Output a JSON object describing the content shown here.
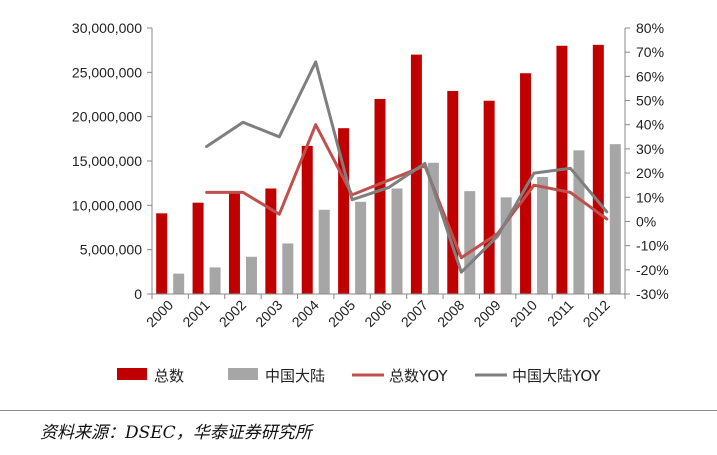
{
  "chart_data": {
    "type": "bar",
    "categories": [
      "2000",
      "2001",
      "2002",
      "2003",
      "2004",
      "2005",
      "2006",
      "2007",
      "2008",
      "2009",
      "2010",
      "2011",
      "2012"
    ],
    "series": [
      {
        "name": "总数",
        "type": "bar",
        "axis": "left",
        "color": "#C00000",
        "values": [
          9100000,
          10300000,
          11500000,
          11900000,
          16700000,
          18700000,
          22000000,
          27000000,
          22900000,
          21800000,
          24900000,
          28000000,
          28100000
        ]
      },
      {
        "name": "中国大陆",
        "type": "bar",
        "axis": "left",
        "color": "#A6A6A6",
        "values": [
          2300000,
          3000000,
          4200000,
          5700000,
          9500000,
          10400000,
          11900000,
          14800000,
          11600000,
          10900000,
          13200000,
          16200000,
          16900000
        ]
      },
      {
        "name": "总数YOY",
        "type": "line",
        "axis": "right",
        "color": "#C0504D",
        "values": [
          null,
          12,
          12,
          3,
          40,
          11,
          17,
          23,
          -15,
          -5,
          15,
          12,
          1
        ]
      },
      {
        "name": "中国大陆YOY",
        "type": "line",
        "axis": "right",
        "color": "#7F7F7F",
        "values": [
          null,
          31,
          41,
          35,
          66,
          9,
          14,
          24,
          -21,
          -6,
          20,
          22,
          4
        ]
      }
    ],
    "y_left": {
      "ylim": [
        0,
        30000000
      ],
      "ticks": [
        0,
        5000000,
        10000000,
        15000000,
        20000000,
        25000000,
        30000000
      ],
      "tick_labels": [
        "0",
        "5,000,000",
        "10,000,000",
        "15,000,000",
        "20,000,000",
        "25,000,000",
        "30,000,000"
      ]
    },
    "y_right": {
      "ylim": [
        -30,
        80
      ],
      "ticks": [
        -30,
        -20,
        -10,
        0,
        10,
        20,
        30,
        40,
        50,
        60,
        70,
        80
      ],
      "tick_labels": [
        "-30%",
        "-20%",
        "-10%",
        "0%",
        "10%",
        "20%",
        "30%",
        "40%",
        "50%",
        "60%",
        "70%",
        "80%"
      ]
    },
    "grid": false,
    "legend_position": "bottom"
  },
  "source_note": "资料来源：DSEC，华泰证券研究所"
}
